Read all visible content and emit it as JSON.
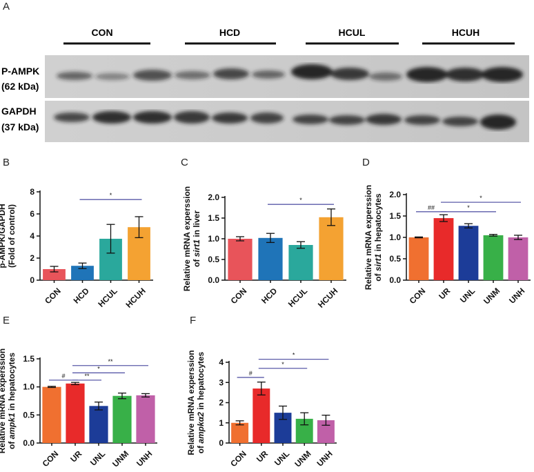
{
  "panel_letters": [
    "A",
    "B",
    "C",
    "D",
    "E",
    "F"
  ],
  "blot": {
    "groups": [
      "CON",
      "HCD",
      "HCUL",
      "HCUH"
    ],
    "rows": [
      {
        "name": "P-AMPK",
        "size": "(62 kDa)"
      },
      {
        "name": "GAPDH",
        "size": "(37 kDa)"
      }
    ]
  },
  "chart_data": [
    {
      "panel": "B",
      "type": "bar",
      "ylabel_lines": [
        "p-AMPK/GAPDH",
        "(Fold of control)"
      ],
      "categories": [
        "CON",
        "HCD",
        "HCUL",
        "HCUH"
      ],
      "values": [
        1.0,
        1.3,
        3.75,
        4.8
      ],
      "errors": [
        0.25,
        0.25,
        1.3,
        0.95
      ],
      "colors": [
        "#e8545a",
        "#1f74b8",
        "#2aa89c",
        "#f4a232"
      ],
      "ylim": [
        0,
        8
      ],
      "yticks": [
        0,
        2,
        4,
        6,
        8
      ],
      "significance": [
        {
          "from": 1,
          "to": 3,
          "label": "*",
          "y": 7.3
        }
      ]
    },
    {
      "panel": "C",
      "type": "bar",
      "ylabel_lines": [
        "Relative mRNA experssion",
        "of sirt1 in liver"
      ],
      "categories": [
        "CON",
        "HCD",
        "HCUL",
        "HCUH"
      ],
      "values": [
        1.0,
        1.02,
        0.85,
        1.52
      ],
      "errors": [
        0.05,
        0.11,
        0.08,
        0.2
      ],
      "colors": [
        "#e8545a",
        "#1f74b8",
        "#2aa89c",
        "#f4a232"
      ],
      "ylim": [
        0,
        2.0
      ],
      "yticks": [
        0.0,
        0.5,
        1.0,
        1.5,
        2.0
      ],
      "tick_decimals": 1,
      "significance": [
        {
          "from": 1,
          "to": 3,
          "label": "*",
          "y": 1.83
        }
      ]
    },
    {
      "panel": "D",
      "type": "bar",
      "ylabel_lines": [
        "Relative mRNA experssion",
        "of sirt1 in hepatocytes"
      ],
      "categories": [
        "CON",
        "UR",
        "UNL",
        "UNM",
        "UNH"
      ],
      "values": [
        1.0,
        1.45,
        1.27,
        1.05,
        1.0
      ],
      "errors": [
        0.01,
        0.08,
        0.05,
        0.02,
        0.05
      ],
      "colors": [
        "#f07030",
        "#e82a2a",
        "#1c3c98",
        "#38b048",
        "#c060a8"
      ],
      "ylim": [
        0,
        2.0
      ],
      "yticks": [
        0.0,
        0.5,
        1.0,
        1.5,
        2.0
      ],
      "tick_decimals": 1,
      "significance": [
        {
          "from": 0,
          "to": 1,
          "label": "##",
          "y": 1.6
        },
        {
          "from": 1,
          "to": 3,
          "label": "*",
          "y": 1.6
        },
        {
          "from": 1,
          "to": 4,
          "label": "*",
          "y": 1.82
        }
      ]
    },
    {
      "panel": "E",
      "type": "bar",
      "ylabel_lines": [
        "Relative mRNA experssion",
        "of ampk1 in hepatocytes"
      ],
      "categories": [
        "CON",
        "UR",
        "UNL",
        "UNM",
        "UNH"
      ],
      "values": [
        1.0,
        1.06,
        0.66,
        0.84,
        0.85
      ],
      "errors": [
        0.01,
        0.02,
        0.07,
        0.05,
        0.03
      ],
      "colors": [
        "#f07030",
        "#e82a2a",
        "#1c3c98",
        "#38b048",
        "#c060a8"
      ],
      "ylim": [
        0,
        1.5
      ],
      "yticks": [
        0.0,
        0.5,
        1.0,
        1.5
      ],
      "tick_decimals": 1,
      "significance": [
        {
          "from": 0,
          "to": 1,
          "label": "#",
          "y": 1.12
        },
        {
          "from": 1,
          "to": 2,
          "label": "**",
          "y": 1.12
        },
        {
          "from": 1,
          "to": 3,
          "label": "*",
          "y": 1.25
        },
        {
          "from": 1,
          "to": 4,
          "label": "**",
          "y": 1.38
        }
      ]
    },
    {
      "panel": "F",
      "type": "bar",
      "ylabel_lines": [
        "Relative mRNA experssion",
        "of ampkα2 in hepatocytes"
      ],
      "categories": [
        "CON",
        "UR",
        "UNL",
        "UNM",
        "UNH"
      ],
      "values": [
        1.0,
        2.7,
        1.5,
        1.2,
        1.13
      ],
      "errors": [
        0.1,
        0.32,
        0.33,
        0.3,
        0.25
      ],
      "colors": [
        "#f07030",
        "#e82a2a",
        "#1c3c98",
        "#38b048",
        "#c060a8"
      ],
      "ylim": [
        0,
        4
      ],
      "yticks": [
        0,
        1,
        2,
        3,
        4
      ],
      "significance": [
        {
          "from": 0,
          "to": 1,
          "label": "#",
          "y": 3.25
        },
        {
          "from": 1,
          "to": 3,
          "label": "*",
          "y": 3.7
        },
        {
          "from": 1,
          "to": 4,
          "label": "*",
          "y": 4.15
        }
      ]
    }
  ]
}
